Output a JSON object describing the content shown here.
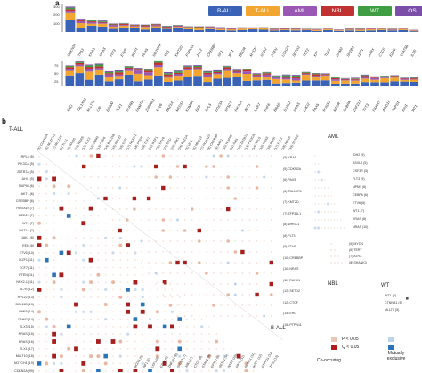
{
  "panel_a": {
    "label": "a",
    "legend": [
      {
        "label": "B-ALL",
        "color": "#3a63b8"
      },
      {
        "label": "T-ALL",
        "color": "#f2a531"
      },
      {
        "label": "AML",
        "color": "#9b57b4"
      },
      {
        "label": "NBL",
        "color": "#c03232"
      },
      {
        "label": "WT",
        "color": "#3f9e43"
      },
      {
        "label": "OS",
        "color": "#7b4fa8"
      }
    ],
    "top_yticks": [
      "300",
      "200",
      "100"
    ],
    "bottom_yticks": [
      "75",
      "50",
      "25"
    ],
    "top_genes": [
      "CDKN2A",
      "TP53",
      "KRAS",
      "NRAS",
      "FLT3",
      "ETV6",
      "IKZF1",
      "PAX5",
      "NOTCH1",
      "RB1",
      "KMT2D",
      "PTPN11",
      "JAK2",
      "CREBBP",
      "NF1",
      "WT1",
      "BCOR",
      "MYCN",
      "NSD2",
      "PTEN",
      "USH2A",
      "SETD2",
      "TET2",
      "KIT",
      "TLX3",
      "DNM2",
      "SH2B3",
      "LEF1",
      "ATRX",
      "CTCF",
      "EZH2",
      "STAT5B",
      "IL7R"
    ],
    "bottom_genes": [
      "ERG",
      "TBL1XR1",
      "MLLT10",
      "CBL",
      "EP300",
      "TLX1",
      "NUP98",
      "DNMT3L",
      "ZFP36L1",
      "ETV6",
      "BAZ1A",
      "MED12",
      "KDM6A",
      "EED",
      "RPL5",
      "DDX3X",
      "NT5C2",
      "PIK3CA",
      "AKT1",
      "USP7",
      "PHF6",
      "BRAF",
      "SUZ12",
      "NRAS",
      "LMO2",
      "PAX5",
      "RUNX1",
      "MTOR",
      "CEBPA",
      "ZNF217",
      "TET3",
      "FBXW7",
      "ARID1A",
      "TRPS1",
      "IDH1",
      "WT1"
    ]
  },
  "panel_b": {
    "label": "b",
    "groups": {
      "tall": "T-ALL",
      "ball": "B-ALL",
      "aml": "AML",
      "nbl": "NBL",
      "wt": "WT"
    },
    "tall_rows": [
      "RPL5 (5)",
      "PIK3CA (5)",
      "ZBTB7A (5)",
      "AHI1 (5)",
      "NUP98 (6)",
      "AKT1 (6)",
      "CREBBP (6)",
      "HOXA10 (7)",
      "MED12 (7)",
      "WT1 (7)",
      "BAZ1A (7)",
      "JAK1 (8)",
      "EED (8)",
      "ETV6 (10)",
      "IKZF1 (11)",
      "TCF7 (11)",
      "PTEN (11)",
      "NKX2-1 (11)",
      "IL7R (12)",
      "RPL22 (13)",
      "BCL11B (13)",
      "PHF6 (14)",
      "DNM2 (14)",
      "TLX3 (15)",
      "NRAS (15)",
      "KRAS (16)",
      "TLX1 (17)",
      "MLLT10 (18)",
      "NOTCH1 (19)",
      "CDKN2A (99)"
    ],
    "aml_rows": [
      "IDH2 (5)",
      "ASXL2 (5)",
      "CSF3R (5)",
      "FLT3 (5)",
      "NPM1 (6)",
      "CEBPA (6)",
      "ETV6 (6)",
      "WT1 (7)",
      "KRAS (8)",
      "NRAS (10)"
    ],
    "ball_right_rows": [
      "(5) KRAS",
      "(5) CDKN2A",
      "(6) PAX5",
      "(6) TBL1XR1",
      "(7) KMT2D",
      "(7) ZFP36L1",
      "(8) WHSC1",
      "(8) FLT3",
      "(9) ETV6",
      "(10) CREBBP",
      "(10) NRAS",
      "(11) RUNX1",
      "(12) SETD2",
      "(12) CTCF",
      "(14) ERG",
      "(15) PTPN11"
    ],
    "nbl_rows": [
      "(5) MYCN",
      "(6) TERT",
      "(7) ATRX",
      "(8) SHANK3"
    ],
    "wt_rows": [
      "WT1 (5)",
      "CTNNB1 (8)",
      "MLLT1 (5)"
    ],
    "ball_bottom_cols": [
      "BCOR (5)",
      "NF1 (5)",
      "LEF1 (6)",
      "EZH2 (6)",
      "ZNF384 (6)",
      "SH2B3 (7)",
      "JAK2 (7)",
      "CTCF (8)",
      "STAG2 (8)",
      "EP300 (8)",
      "SETD2 (9)",
      "NSD2 (10)",
      "PAX5 (11)",
      "RUNX1 (11)",
      "IKZF1 (12)",
      "PTPN11 (12)",
      "TP53 (13)"
    ],
    "legend": {
      "p_text": "P < 0.05",
      "q_text": "Q < 0.05",
      "cooccurring": "Co-occuring",
      "exclusive": "Mutually exclusive",
      "cooc_color": "#b21b1b",
      "excl_color": "#2d73b8"
    }
  }
}
